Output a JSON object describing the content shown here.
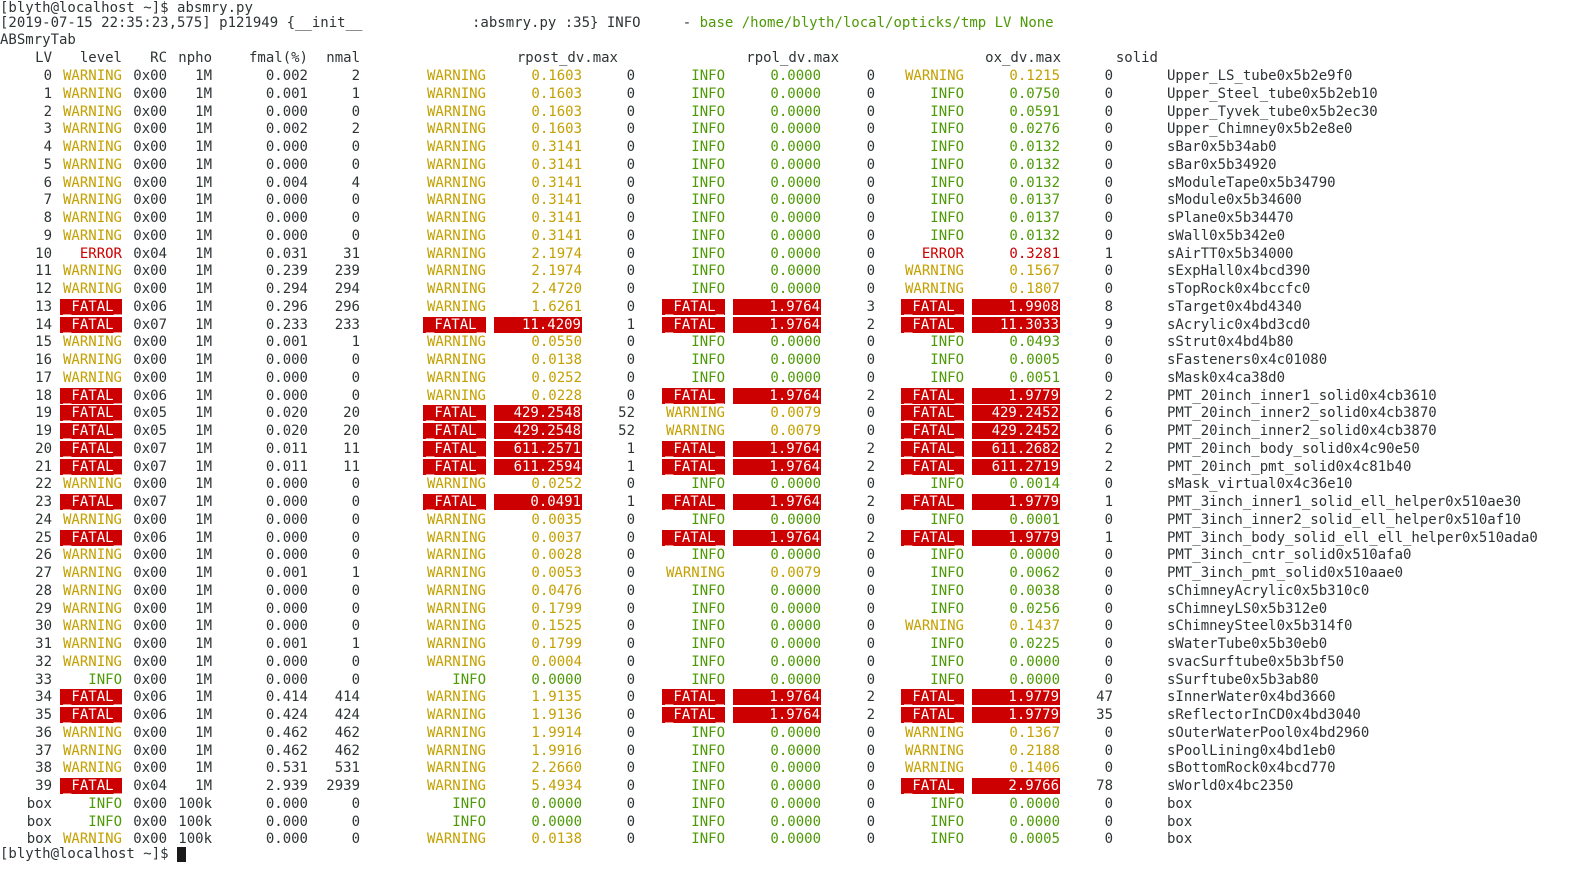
{
  "terminal": {
    "prompt": "[blyth@localhost ~]$",
    "command": "absmry.py",
    "log_prefix": "[2019-07-15 22:35:23,575] p121949 {__init__             :absmry.py :35} INFO     - ",
    "log_message": "base /home/blyth/local/opticks/tmp LV None",
    "table_title": "ABSmryTab",
    "final_prompt": "[blyth@localhost ~]$"
  },
  "table": {
    "headers": [
      "LV",
      "level",
      "RC",
      "npho",
      "fmal(%)",
      "nmal",
      "rpost_dv.max",
      "rpol_dv.max",
      "ox_dv.max",
      "solid"
    ],
    "rows": [
      {
        "lv": "0",
        "level": "WARNING",
        "rc": "0x00",
        "npho": "1M",
        "fmal": "0.002",
        "nmal": "2",
        "r1": "WARNING",
        "v1": "0.1603",
        "n1": "0",
        "r2": "INFO",
        "v2": "0.0000",
        "n2": "0",
        "r3": "WARNING",
        "v3": "0.1215",
        "n3": "0",
        "solid": "Upper_LS_tube0x5b2e9f0"
      },
      {
        "lv": "1",
        "level": "WARNING",
        "rc": "0x00",
        "npho": "1M",
        "fmal": "0.001",
        "nmal": "1",
        "r1": "WARNING",
        "v1": "0.1603",
        "n1": "0",
        "r2": "INFO",
        "v2": "0.0000",
        "n2": "0",
        "r3": "INFO",
        "v3": "0.0750",
        "n3": "0",
        "solid": "Upper_Steel_tube0x5b2eb10"
      },
      {
        "lv": "2",
        "level": "WARNING",
        "rc": "0x00",
        "npho": "1M",
        "fmal": "0.000",
        "nmal": "0",
        "r1": "WARNING",
        "v1": "0.1603",
        "n1": "0",
        "r2": "INFO",
        "v2": "0.0000",
        "n2": "0",
        "r3": "INFO",
        "v3": "0.0591",
        "n3": "0",
        "solid": "Upper_Tyvek_tube0x5b2ec30"
      },
      {
        "lv": "3",
        "level": "WARNING",
        "rc": "0x00",
        "npho": "1M",
        "fmal": "0.002",
        "nmal": "2",
        "r1": "WARNING",
        "v1": "0.1603",
        "n1": "0",
        "r2": "INFO",
        "v2": "0.0000",
        "n2": "0",
        "r3": "INFO",
        "v3": "0.0276",
        "n3": "0",
        "solid": "Upper_Chimney0x5b2e8e0"
      },
      {
        "lv": "4",
        "level": "WARNING",
        "rc": "0x00",
        "npho": "1M",
        "fmal": "0.000",
        "nmal": "0",
        "r1": "WARNING",
        "v1": "0.3141",
        "n1": "0",
        "r2": "INFO",
        "v2": "0.0000",
        "n2": "0",
        "r3": "INFO",
        "v3": "0.0132",
        "n3": "0",
        "solid": "sBar0x5b34ab0"
      },
      {
        "lv": "5",
        "level": "WARNING",
        "rc": "0x00",
        "npho": "1M",
        "fmal": "0.000",
        "nmal": "0",
        "r1": "WARNING",
        "v1": "0.3141",
        "n1": "0",
        "r2": "INFO",
        "v2": "0.0000",
        "n2": "0",
        "r3": "INFO",
        "v3": "0.0132",
        "n3": "0",
        "solid": "sBar0x5b34920"
      },
      {
        "lv": "6",
        "level": "WARNING",
        "rc": "0x00",
        "npho": "1M",
        "fmal": "0.004",
        "nmal": "4",
        "r1": "WARNING",
        "v1": "0.3141",
        "n1": "0",
        "r2": "INFO",
        "v2": "0.0000",
        "n2": "0",
        "r3": "INFO",
        "v3": "0.0132",
        "n3": "0",
        "solid": "sModuleTape0x5b34790"
      },
      {
        "lv": "7",
        "level": "WARNING",
        "rc": "0x00",
        "npho": "1M",
        "fmal": "0.000",
        "nmal": "0",
        "r1": "WARNING",
        "v1": "0.3141",
        "n1": "0",
        "r2": "INFO",
        "v2": "0.0000",
        "n2": "0",
        "r3": "INFO",
        "v3": "0.0137",
        "n3": "0",
        "solid": "sModule0x5b34600"
      },
      {
        "lv": "8",
        "level": "WARNING",
        "rc": "0x00",
        "npho": "1M",
        "fmal": "0.000",
        "nmal": "0",
        "r1": "WARNING",
        "v1": "0.3141",
        "n1": "0",
        "r2": "INFO",
        "v2": "0.0000",
        "n2": "0",
        "r3": "INFO",
        "v3": "0.0137",
        "n3": "0",
        "solid": "sPlane0x5b34470"
      },
      {
        "lv": "9",
        "level": "WARNING",
        "rc": "0x00",
        "npho": "1M",
        "fmal": "0.000",
        "nmal": "0",
        "r1": "WARNING",
        "v1": "0.3141",
        "n1": "0",
        "r2": "INFO",
        "v2": "0.0000",
        "n2": "0",
        "r3": "INFO",
        "v3": "0.0132",
        "n3": "0",
        "solid": "sWall0x5b342e0"
      },
      {
        "lv": "10",
        "level": "ERROR",
        "rc": "0x04",
        "npho": "1M",
        "fmal": "0.031",
        "nmal": "31",
        "r1": "WARNING",
        "v1": "2.1974",
        "n1": "0",
        "r2": "INFO",
        "v2": "0.0000",
        "n2": "0",
        "r3": "ERROR",
        "v3": "0.3281",
        "n3": "1",
        "solid": "sAirTT0x5b34000"
      },
      {
        "lv": "11",
        "level": "WARNING",
        "rc": "0x00",
        "npho": "1M",
        "fmal": "0.239",
        "nmal": "239",
        "r1": "WARNING",
        "v1": "2.1974",
        "n1": "0",
        "r2": "INFO",
        "v2": "0.0000",
        "n2": "0",
        "r3": "WARNING",
        "v3": "0.1567",
        "n3": "0",
        "solid": "sExpHall0x4bcd390"
      },
      {
        "lv": "12",
        "level": "WARNING",
        "rc": "0x00",
        "npho": "1M",
        "fmal": "0.294",
        "nmal": "294",
        "r1": "WARNING",
        "v1": "2.4720",
        "n1": "0",
        "r2": "INFO",
        "v2": "0.0000",
        "n2": "0",
        "r3": "WARNING",
        "v3": "0.1807",
        "n3": "0",
        "solid": "sTopRock0x4bccfc0"
      },
      {
        "lv": "13",
        "level": "FATAL",
        "rc": "0x06",
        "npho": "1M",
        "fmal": "0.296",
        "nmal": "296",
        "r1": "WARNING",
        "v1": "1.6261",
        "n1": "0",
        "r2": "FATAL",
        "v2": "1.9764",
        "n2": "3",
        "r3": "FATAL",
        "v3": "1.9908",
        "n3": "8",
        "solid": "sTarget0x4bd4340"
      },
      {
        "lv": "14",
        "level": "FATAL",
        "rc": "0x07",
        "npho": "1M",
        "fmal": "0.233",
        "nmal": "233",
        "r1": "FATAL",
        "v1": "11.4209",
        "n1": "1",
        "r2": "FATAL",
        "v2": "1.9764",
        "n2": "2",
        "r3": "FATAL",
        "v3": "11.3033",
        "n3": "9",
        "solid": "sAcrylic0x4bd3cd0"
      },
      {
        "lv": "15",
        "level": "WARNING",
        "rc": "0x00",
        "npho": "1M",
        "fmal": "0.001",
        "nmal": "1",
        "r1": "WARNING",
        "v1": "0.0550",
        "n1": "0",
        "r2": "INFO",
        "v2": "0.0000",
        "n2": "0",
        "r3": "INFO",
        "v3": "0.0493",
        "n3": "0",
        "solid": "sStrut0x4bd4b80"
      },
      {
        "lv": "16",
        "level": "WARNING",
        "rc": "0x00",
        "npho": "1M",
        "fmal": "0.000",
        "nmal": "0",
        "r1": "WARNING",
        "v1": "0.0138",
        "n1": "0",
        "r2": "INFO",
        "v2": "0.0000",
        "n2": "0",
        "r3": "INFO",
        "v3": "0.0005",
        "n3": "0",
        "solid": "sFasteners0x4c01080"
      },
      {
        "lv": "17",
        "level": "WARNING",
        "rc": "0x00",
        "npho": "1M",
        "fmal": "0.000",
        "nmal": "0",
        "r1": "WARNING",
        "v1": "0.0252",
        "n1": "0",
        "r2": "INFO",
        "v2": "0.0000",
        "n2": "0",
        "r3": "INFO",
        "v3": "0.0051",
        "n3": "0",
        "solid": "sMask0x4ca38d0"
      },
      {
        "lv": "18",
        "level": "FATAL",
        "rc": "0x06",
        "npho": "1M",
        "fmal": "0.000",
        "nmal": "0",
        "r1": "WARNING",
        "v1": "0.0228",
        "n1": "0",
        "r2": "FATAL",
        "v2": "1.9764",
        "n2": "2",
        "r3": "FATAL",
        "v3": "1.9779",
        "n3": "2",
        "solid": "PMT_20inch_inner1_solid0x4cb3610"
      },
      {
        "lv": "19",
        "level": "FATAL",
        "rc": "0x05",
        "npho": "1M",
        "fmal": "0.020",
        "nmal": "20",
        "r1": "FATAL",
        "v1": "429.2548",
        "n1": "52",
        "r2": "WARNING",
        "v2": "0.0079",
        "n2": "0",
        "r3": "FATAL",
        "v3": "429.2452",
        "n3": "6",
        "solid": "PMT_20inch_inner2_solid0x4cb3870"
      },
      {
        "lv": "19",
        "level": "FATAL",
        "rc": "0x05",
        "npho": "1M",
        "fmal": "0.020",
        "nmal": "20",
        "r1": "FATAL",
        "v1": "429.2548",
        "n1": "52",
        "r2": "WARNING",
        "v2": "0.0079",
        "n2": "0",
        "r3": "FATAL",
        "v3": "429.2452",
        "n3": "6",
        "solid": "PMT_20inch_inner2_solid0x4cb3870"
      },
      {
        "lv": "20",
        "level": "FATAL",
        "rc": "0x07",
        "npho": "1M",
        "fmal": "0.011",
        "nmal": "11",
        "r1": "FATAL",
        "v1": "611.2571",
        "n1": "1",
        "r2": "FATAL",
        "v2": "1.9764",
        "n2": "2",
        "r3": "FATAL",
        "v3": "611.2682",
        "n3": "2",
        "solid": "PMT_20inch_body_solid0x4c90e50"
      },
      {
        "lv": "21",
        "level": "FATAL",
        "rc": "0x07",
        "npho": "1M",
        "fmal": "0.011",
        "nmal": "11",
        "r1": "FATAL",
        "v1": "611.2594",
        "n1": "1",
        "r2": "FATAL",
        "v2": "1.9764",
        "n2": "2",
        "r3": "FATAL",
        "v3": "611.2719",
        "n3": "2",
        "solid": "PMT_20inch_pmt_solid0x4c81b40"
      },
      {
        "lv": "22",
        "level": "WARNING",
        "rc": "0x00",
        "npho": "1M",
        "fmal": "0.000",
        "nmal": "0",
        "r1": "WARNING",
        "v1": "0.0252",
        "n1": "0",
        "r2": "INFO",
        "v2": "0.0000",
        "n2": "0",
        "r3": "INFO",
        "v3": "0.0014",
        "n3": "0",
        "solid": "sMask_virtual0x4c36e10"
      },
      {
        "lv": "23",
        "level": "FATAL",
        "rc": "0x07",
        "npho": "1M",
        "fmal": "0.000",
        "nmal": "0",
        "r1": "FATAL",
        "v1": "0.0491",
        "n1": "1",
        "r2": "FATAL",
        "v2": "1.9764",
        "n2": "2",
        "r3": "FATAL",
        "v3": "1.9779",
        "n3": "1",
        "solid": "PMT_3inch_inner1_solid_ell_helper0x510ae30"
      },
      {
        "lv": "24",
        "level": "WARNING",
        "rc": "0x00",
        "npho": "1M",
        "fmal": "0.000",
        "nmal": "0",
        "r1": "WARNING",
        "v1": "0.0035",
        "n1": "0",
        "r2": "INFO",
        "v2": "0.0000",
        "n2": "0",
        "r3": "INFO",
        "v3": "0.0001",
        "n3": "0",
        "solid": "PMT_3inch_inner2_solid_ell_helper0x510af10"
      },
      {
        "lv": "25",
        "level": "FATAL",
        "rc": "0x06",
        "npho": "1M",
        "fmal": "0.000",
        "nmal": "0",
        "r1": "WARNING",
        "v1": "0.0037",
        "n1": "0",
        "r2": "FATAL",
        "v2": "1.9764",
        "n2": "2",
        "r3": "FATAL",
        "v3": "1.9779",
        "n3": "1",
        "solid": "PMT_3inch_body_solid_ell_ell_helper0x510ada0"
      },
      {
        "lv": "26",
        "level": "WARNING",
        "rc": "0x00",
        "npho": "1M",
        "fmal": "0.000",
        "nmal": "0",
        "r1": "WARNING",
        "v1": "0.0028",
        "n1": "0",
        "r2": "INFO",
        "v2": "0.0000",
        "n2": "0",
        "r3": "INFO",
        "v3": "0.0000",
        "n3": "0",
        "solid": "PMT_3inch_cntr_solid0x510afa0"
      },
      {
        "lv": "27",
        "level": "WARNING",
        "rc": "0x00",
        "npho": "1M",
        "fmal": "0.001",
        "nmal": "1",
        "r1": "WARNING",
        "v1": "0.0053",
        "n1": "0",
        "r2": "WARNING",
        "v2": "0.0079",
        "n2": "0",
        "r3": "INFO",
        "v3": "0.0062",
        "n3": "0",
        "solid": "PMT_3inch_pmt_solid0x510aae0"
      },
      {
        "lv": "28",
        "level": "WARNING",
        "rc": "0x00",
        "npho": "1M",
        "fmal": "0.000",
        "nmal": "0",
        "r1": "WARNING",
        "v1": "0.0476",
        "n1": "0",
        "r2": "INFO",
        "v2": "0.0000",
        "n2": "0",
        "r3": "INFO",
        "v3": "0.0038",
        "n3": "0",
        "solid": "sChimneyAcrylic0x5b310c0"
      },
      {
        "lv": "29",
        "level": "WARNING",
        "rc": "0x00",
        "npho": "1M",
        "fmal": "0.000",
        "nmal": "0",
        "r1": "WARNING",
        "v1": "0.1799",
        "n1": "0",
        "r2": "INFO",
        "v2": "0.0000",
        "n2": "0",
        "r3": "INFO",
        "v3": "0.0256",
        "n3": "0",
        "solid": "sChimneyLS0x5b312e0"
      },
      {
        "lv": "30",
        "level": "WARNING",
        "rc": "0x00",
        "npho": "1M",
        "fmal": "0.000",
        "nmal": "0",
        "r1": "WARNING",
        "v1": "0.1525",
        "n1": "0",
        "r2": "INFO",
        "v2": "0.0000",
        "n2": "0",
        "r3": "WARNING",
        "v3": "0.1437",
        "n3": "0",
        "solid": "sChimneySteel0x5b314f0"
      },
      {
        "lv": "31",
        "level": "WARNING",
        "rc": "0x00",
        "npho": "1M",
        "fmal": "0.001",
        "nmal": "1",
        "r1": "WARNING",
        "v1": "0.1799",
        "n1": "0",
        "r2": "INFO",
        "v2": "0.0000",
        "n2": "0",
        "r3": "INFO",
        "v3": "0.0225",
        "n3": "0",
        "solid": "sWaterTube0x5b30eb0"
      },
      {
        "lv": "32",
        "level": "WARNING",
        "rc": "0x00",
        "npho": "1M",
        "fmal": "0.000",
        "nmal": "0",
        "r1": "WARNING",
        "v1": "0.0004",
        "n1": "0",
        "r2": "INFO",
        "v2": "0.0000",
        "n2": "0",
        "r3": "INFO",
        "v3": "0.0000",
        "n3": "0",
        "solid": "svacSurftube0x5b3bf50"
      },
      {
        "lv": "33",
        "level": "INFO",
        "rc": "0x00",
        "npho": "1M",
        "fmal": "0.000",
        "nmal": "0",
        "r1": "INFO",
        "v1": "0.0000",
        "n1": "0",
        "r2": "INFO",
        "v2": "0.0000",
        "n2": "0",
        "r3": "INFO",
        "v3": "0.0000",
        "n3": "0",
        "solid": "sSurftube0x5b3ab80"
      },
      {
        "lv": "34",
        "level": "FATAL",
        "rc": "0x06",
        "npho": "1M",
        "fmal": "0.414",
        "nmal": "414",
        "r1": "WARNING",
        "v1": "1.9135",
        "n1": "0",
        "r2": "FATAL",
        "v2": "1.9764",
        "n2": "2",
        "r3": "FATAL",
        "v3": "1.9779",
        "n3": "47",
        "solid": "sInnerWater0x4bd3660"
      },
      {
        "lv": "35",
        "level": "FATAL",
        "rc": "0x06",
        "npho": "1M",
        "fmal": "0.424",
        "nmal": "424",
        "r1": "WARNING",
        "v1": "1.9136",
        "n1": "0",
        "r2": "FATAL",
        "v2": "1.9764",
        "n2": "2",
        "r3": "FATAL",
        "v3": "1.9779",
        "n3": "35",
        "solid": "sReflectorInCD0x4bd3040"
      },
      {
        "lv": "36",
        "level": "WARNING",
        "rc": "0x00",
        "npho": "1M",
        "fmal": "0.462",
        "nmal": "462",
        "r1": "WARNING",
        "v1": "1.9914",
        "n1": "0",
        "r2": "INFO",
        "v2": "0.0000",
        "n2": "0",
        "r3": "WARNING",
        "v3": "0.1367",
        "n3": "0",
        "solid": "sOuterWaterPool0x4bd2960"
      },
      {
        "lv": "37",
        "level": "WARNING",
        "rc": "0x00",
        "npho": "1M",
        "fmal": "0.462",
        "nmal": "462",
        "r1": "WARNING",
        "v1": "1.9916",
        "n1": "0",
        "r2": "INFO",
        "v2": "0.0000",
        "n2": "0",
        "r3": "WARNING",
        "v3": "0.2188",
        "n3": "0",
        "solid": "sPoolLining0x4bd1eb0"
      },
      {
        "lv": "38",
        "level": "WARNING",
        "rc": "0x00",
        "npho": "1M",
        "fmal": "0.531",
        "nmal": "531",
        "r1": "WARNING",
        "v1": "2.2660",
        "n1": "0",
        "r2": "INFO",
        "v2": "0.0000",
        "n2": "0",
        "r3": "WARNING",
        "v3": "0.1406",
        "n3": "0",
        "solid": "sBottomRock0x4bcd770"
      },
      {
        "lv": "39",
        "level": "FATAL",
        "rc": "0x04",
        "npho": "1M",
        "fmal": "2.939",
        "nmal": "2939",
        "r1": "WARNING",
        "v1": "5.4934",
        "n1": "0",
        "r2": "INFO",
        "v2": "0.0000",
        "n2": "0",
        "r3": "FATAL",
        "v3": "2.9766",
        "n3": "78",
        "solid": "sWorld0x4bc2350"
      },
      {
        "lv": "box",
        "level": "INFO",
        "rc": "0x00",
        "npho": "100k",
        "fmal": "0.000",
        "nmal": "0",
        "r1": "INFO",
        "v1": "0.0000",
        "n1": "0",
        "r2": "INFO",
        "v2": "0.0000",
        "n2": "0",
        "r3": "INFO",
        "v3": "0.0000",
        "n3": "0",
        "solid": "box"
      },
      {
        "lv": "box",
        "level": "INFO",
        "rc": "0x00",
        "npho": "100k",
        "fmal": "0.000",
        "nmal": "0",
        "r1": "INFO",
        "v1": "0.0000",
        "n1": "0",
        "r2": "INFO",
        "v2": "0.0000",
        "n2": "0",
        "r3": "INFO",
        "v3": "0.0000",
        "n3": "0",
        "solid": "box"
      },
      {
        "lv": "box",
        "level": "WARNING",
        "rc": "0x00",
        "npho": "100k",
        "fmal": "0.000",
        "nmal": "0",
        "r1": "WARNING",
        "v1": "0.0138",
        "n1": "0",
        "r2": "INFO",
        "v2": "0.0000",
        "n2": "0",
        "r3": "INFO",
        "v3": "0.0005",
        "n3": "0",
        "solid": "box"
      }
    ]
  },
  "colors": {
    "background": "#ffffff",
    "text": "#2e3436",
    "warning": "#c4a000",
    "info": "#4e9a06",
    "error": "#cc0000",
    "fatal_bg": "#cc0000",
    "fatal_fg": "#ffffff"
  }
}
